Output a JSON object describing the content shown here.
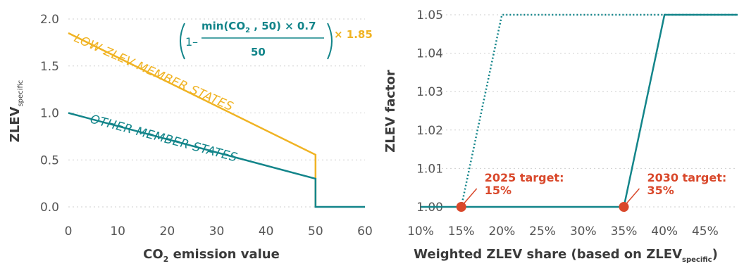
{
  "colors": {
    "teal": "#13858a",
    "gold": "#f0b323",
    "red": "#d9482b",
    "axis_text": "#555555",
    "label_text": "#3a3a3a",
    "grid": "#cfcfcf"
  },
  "chart_data": [
    {
      "type": "line",
      "xlabel": "CO",
      "xlabel_sub": "2",
      "xlabel_rest": " emission value",
      "ylabel": "ZLEV",
      "ylabel_sub": "specific",
      "xlim": [
        0,
        60
      ],
      "ylim": [
        0,
        2.0
      ],
      "x_ticks": [
        "0",
        "10",
        "20",
        "30",
        "40",
        "50",
        "60"
      ],
      "y_ticks": [
        "0.0",
        "0.5",
        "1.0",
        "1.5",
        "2.0"
      ],
      "grid": "horizontal dotted",
      "series": [
        {
          "name": "LOW-ZLEV MEMBER STATES",
          "color": "#f0b323",
          "x": [
            0,
            50,
            50
          ],
          "y": [
            1.85,
            0.555,
            0
          ]
        },
        {
          "name": "OTHER MEMBER STATES",
          "color": "#13858a",
          "x": [
            0,
            50,
            50,
            60
          ],
          "y": [
            1.0,
            0.3,
            0,
            0
          ]
        }
      ],
      "formula": {
        "one": "1",
        "minus": "–",
        "numerator_pre": "min(CO",
        "numerator_sub": "2",
        "numerator_post": " , 50) × 0.7",
        "denominator": "50",
        "multiplier": "× 1.85"
      }
    },
    {
      "type": "line",
      "xlabel": "Weighted ZLEV share (based on ZLEV",
      "xlabel_sub": "specific",
      "xlabel_close": ")",
      "ylabel": "ZLEV factor",
      "xlim": [
        0.1,
        0.49
      ],
      "ylim": [
        1.0,
        1.05
      ],
      "x_ticks": [
        "10%",
        "15%",
        "20%",
        "25%",
        "30%",
        "35%",
        "40%",
        "45%"
      ],
      "y_ticks": [
        "1.00",
        "1.01",
        "1.02",
        "1.03",
        "1.04",
        "1.05"
      ],
      "grid": "horizontal dotted",
      "series": [
        {
          "name": "2025",
          "color": "#13858a",
          "style": "dotted",
          "x": [
            0.15,
            0.2,
            0.49
          ],
          "y": [
            1.0,
            1.05,
            1.05
          ]
        },
        {
          "name": "2030",
          "color": "#13858a",
          "style": "solid",
          "x": [
            0.1,
            0.35,
            0.4,
            0.49
          ],
          "y": [
            1.0,
            1.0,
            1.05,
            1.05
          ]
        }
      ],
      "annotations": [
        {
          "x": 0.15,
          "y": 1.0,
          "line1": "2025 target:",
          "line2": "15%",
          "color": "#d9482b"
        },
        {
          "x": 0.35,
          "y": 1.0,
          "line1": "2030 target:",
          "line2": "35%",
          "color": "#d9482b"
        }
      ]
    }
  ]
}
